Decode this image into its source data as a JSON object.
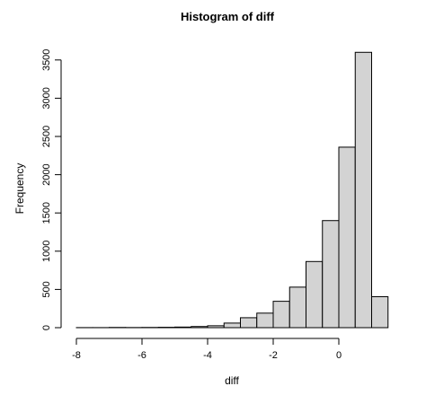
{
  "chart_data": {
    "type": "bar",
    "title": "Histogram of diff",
    "xlabel": "diff",
    "ylabel": "Frequency",
    "bin_width": 0.5,
    "bin_starts": [
      -8.0,
      -7.5,
      -7.0,
      -6.5,
      -6.0,
      -5.5,
      -5.0,
      -4.5,
      -4.0,
      -3.5,
      -3.0,
      -2.5,
      -2.0,
      -1.5,
      -1.0,
      -0.5,
      0.0,
      0.5,
      1.0
    ],
    "values": [
      1,
      1,
      3,
      2,
      3,
      5,
      8,
      15,
      25,
      60,
      130,
      190,
      345,
      530,
      865,
      1400,
      2360,
      3600,
      405
    ],
    "xlim": [
      -8,
      1.5
    ],
    "ylim": [
      0,
      3600
    ],
    "x_ticks": [
      -8,
      -6,
      -4,
      -2,
      0
    ],
    "x_tick_labels": [
      "-8",
      "-6",
      "-4",
      "-2",
      "0"
    ],
    "y_ticks": [
      0,
      500,
      1000,
      1500,
      2000,
      2500,
      3000,
      3500
    ],
    "y_tick_labels": [
      "0",
      "500",
      "1000",
      "1500",
      "2000",
      "2500",
      "3000",
      "3500"
    ],
    "grid": false,
    "colors": {
      "bar_fill": "#d3d3d3",
      "bar_stroke": "#000000"
    }
  }
}
